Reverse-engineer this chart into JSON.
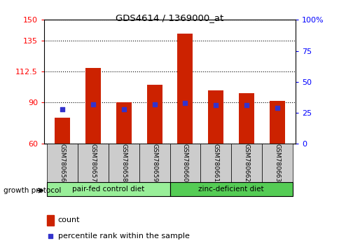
{
  "title": "GDS4614 / 1369000_at",
  "samples": [
    "GSM780656",
    "GSM780657",
    "GSM780658",
    "GSM780659",
    "GSM780660",
    "GSM780661",
    "GSM780662",
    "GSM780663"
  ],
  "counts": [
    79,
    115,
    90,
    103,
    140,
    99,
    97,
    91
  ],
  "percentiles": [
    28,
    32,
    28,
    32,
    33,
    31,
    31,
    29
  ],
  "ylim_left": [
    60,
    150
  ],
  "ylim_right": [
    0,
    100
  ],
  "yticks_left": [
    60,
    90,
    112.5,
    135,
    150
  ],
  "yticks_right": [
    0,
    25,
    50,
    75,
    100
  ],
  "ytick_labels_left": [
    "60",
    "90",
    "112.5",
    "135",
    "150"
  ],
  "ytick_labels_right": [
    "0",
    "25",
    "50",
    "75",
    "100%"
  ],
  "bar_color": "#cc2200",
  "dot_color": "#3333cc",
  "groups": [
    {
      "label": "pair-fed control diet",
      "indices": [
        0,
        1,
        2,
        3
      ],
      "color": "#99ee99"
    },
    {
      "label": "zinc-deficient diet",
      "indices": [
        4,
        5,
        6,
        7
      ],
      "color": "#55cc55"
    }
  ],
  "group_label_prefix": "growth protocol",
  "legend_count_label": "count",
  "legend_percentile_label": "percentile rank within the sample"
}
